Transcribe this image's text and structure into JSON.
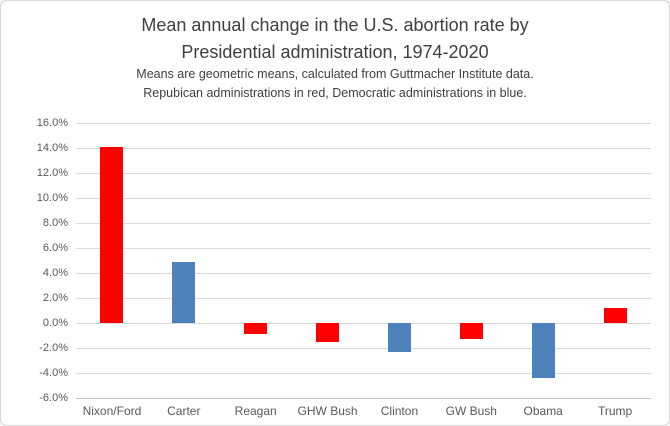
{
  "window": {
    "background": "#FFFFFF",
    "border_color": "#D7D7D7"
  },
  "header": {
    "title_line1": "Mean annual change in the U.S. abortion rate by",
    "title_line2": "Presidential administration, 1974-2020",
    "subtitle_line1": "Means are geometric means, calculated from Guttmacher Institute data.",
    "subtitle_line2": "Repubican administrations in red, Democratic administrations in blue."
  },
  "chart_data": {
    "type": "bar",
    "title": "Mean annual change in the U.S. abortion rate by Presidential administration, 1974-2020",
    "subtitle": "Means are geometric means, calculated from Guttmacher Institute data. Repubican administrations in red, Democratic administrations in blue.",
    "categories": [
      "Nixon/Ford",
      "Carter",
      "Reagan",
      "GHW Bush",
      "Clinton",
      "GW Bush",
      "Obama",
      "Trump"
    ],
    "values": [
      14.1,
      4.9,
      -0.9,
      -1.5,
      -2.3,
      -1.3,
      -4.4,
      1.2
    ],
    "parties": [
      "R",
      "D",
      "R",
      "R",
      "D",
      "R",
      "D",
      "R"
    ],
    "party_colors": {
      "R": "#FF0000",
      "D": "#4F81BD"
    },
    "units": "percent",
    "ylim": [
      -6,
      16
    ],
    "ytick_step": 2,
    "ytick_labels": [
      "16.0%",
      "14.0%",
      "12.0%",
      "10.0%",
      "8.0%",
      "6.0%",
      "4.0%",
      "2.0%",
      "0.0%",
      "-2.0%",
      "-4.0%",
      "-6.0%"
    ],
    "xlabel": "",
    "ylabel": "",
    "grid": true,
    "legend": "none",
    "gridline_color": "#D9D9D9",
    "axis_text_color": "#595959"
  }
}
